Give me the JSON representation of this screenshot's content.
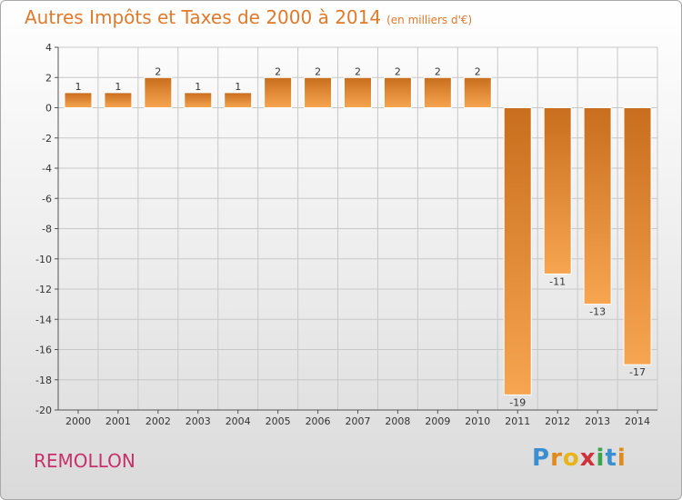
{
  "header": {
    "title": "Autres Impôts et Taxes de 2000 à 2014",
    "unit": "(en milliers d'€)"
  },
  "footer": {
    "commune": "REMOLLON",
    "brand": [
      "P",
      "r",
      "o",
      "x",
      "i",
      "t",
      "i"
    ]
  },
  "colors": {
    "bar_top": "#c86e1e",
    "bar_bottom": "#f7a550",
    "title": "#e07a2a",
    "commune": "#c8306a",
    "grid": "#c8c8c8"
  },
  "chart_data": {
    "type": "bar",
    "title": "Autres Impôts et Taxes de 2000 à 2014",
    "subtitle": "(en milliers d'€)",
    "xlabel": "",
    "ylabel": "",
    "categories": [
      "2000",
      "2001",
      "2002",
      "2003",
      "2004",
      "2005",
      "2006",
      "2007",
      "2008",
      "2009",
      "2010",
      "2011",
      "2012",
      "2013",
      "2014"
    ],
    "values": [
      1,
      1,
      2,
      1,
      1,
      2,
      2,
      2,
      2,
      2,
      2,
      -19,
      -11,
      -13,
      -17
    ],
    "value_labels": [
      "1",
      "1",
      "2",
      "1",
      "1",
      "2",
      "2",
      "2",
      "2",
      "2",
      "2",
      "-19",
      "-11",
      "-13",
      "-17"
    ],
    "ylim": [
      -20,
      4
    ],
    "yticks": [
      4,
      2,
      0,
      -2,
      -4,
      -6,
      -8,
      -10,
      -12,
      -14,
      -16,
      -18,
      -20
    ],
    "ytick_labels": [
      "4",
      "2",
      "0",
      "-2",
      "-4",
      "-6",
      "-8",
      "-10",
      "-12",
      "-14",
      "-16",
      "-18",
      "-20"
    ],
    "grid": true,
    "legend": "none"
  }
}
